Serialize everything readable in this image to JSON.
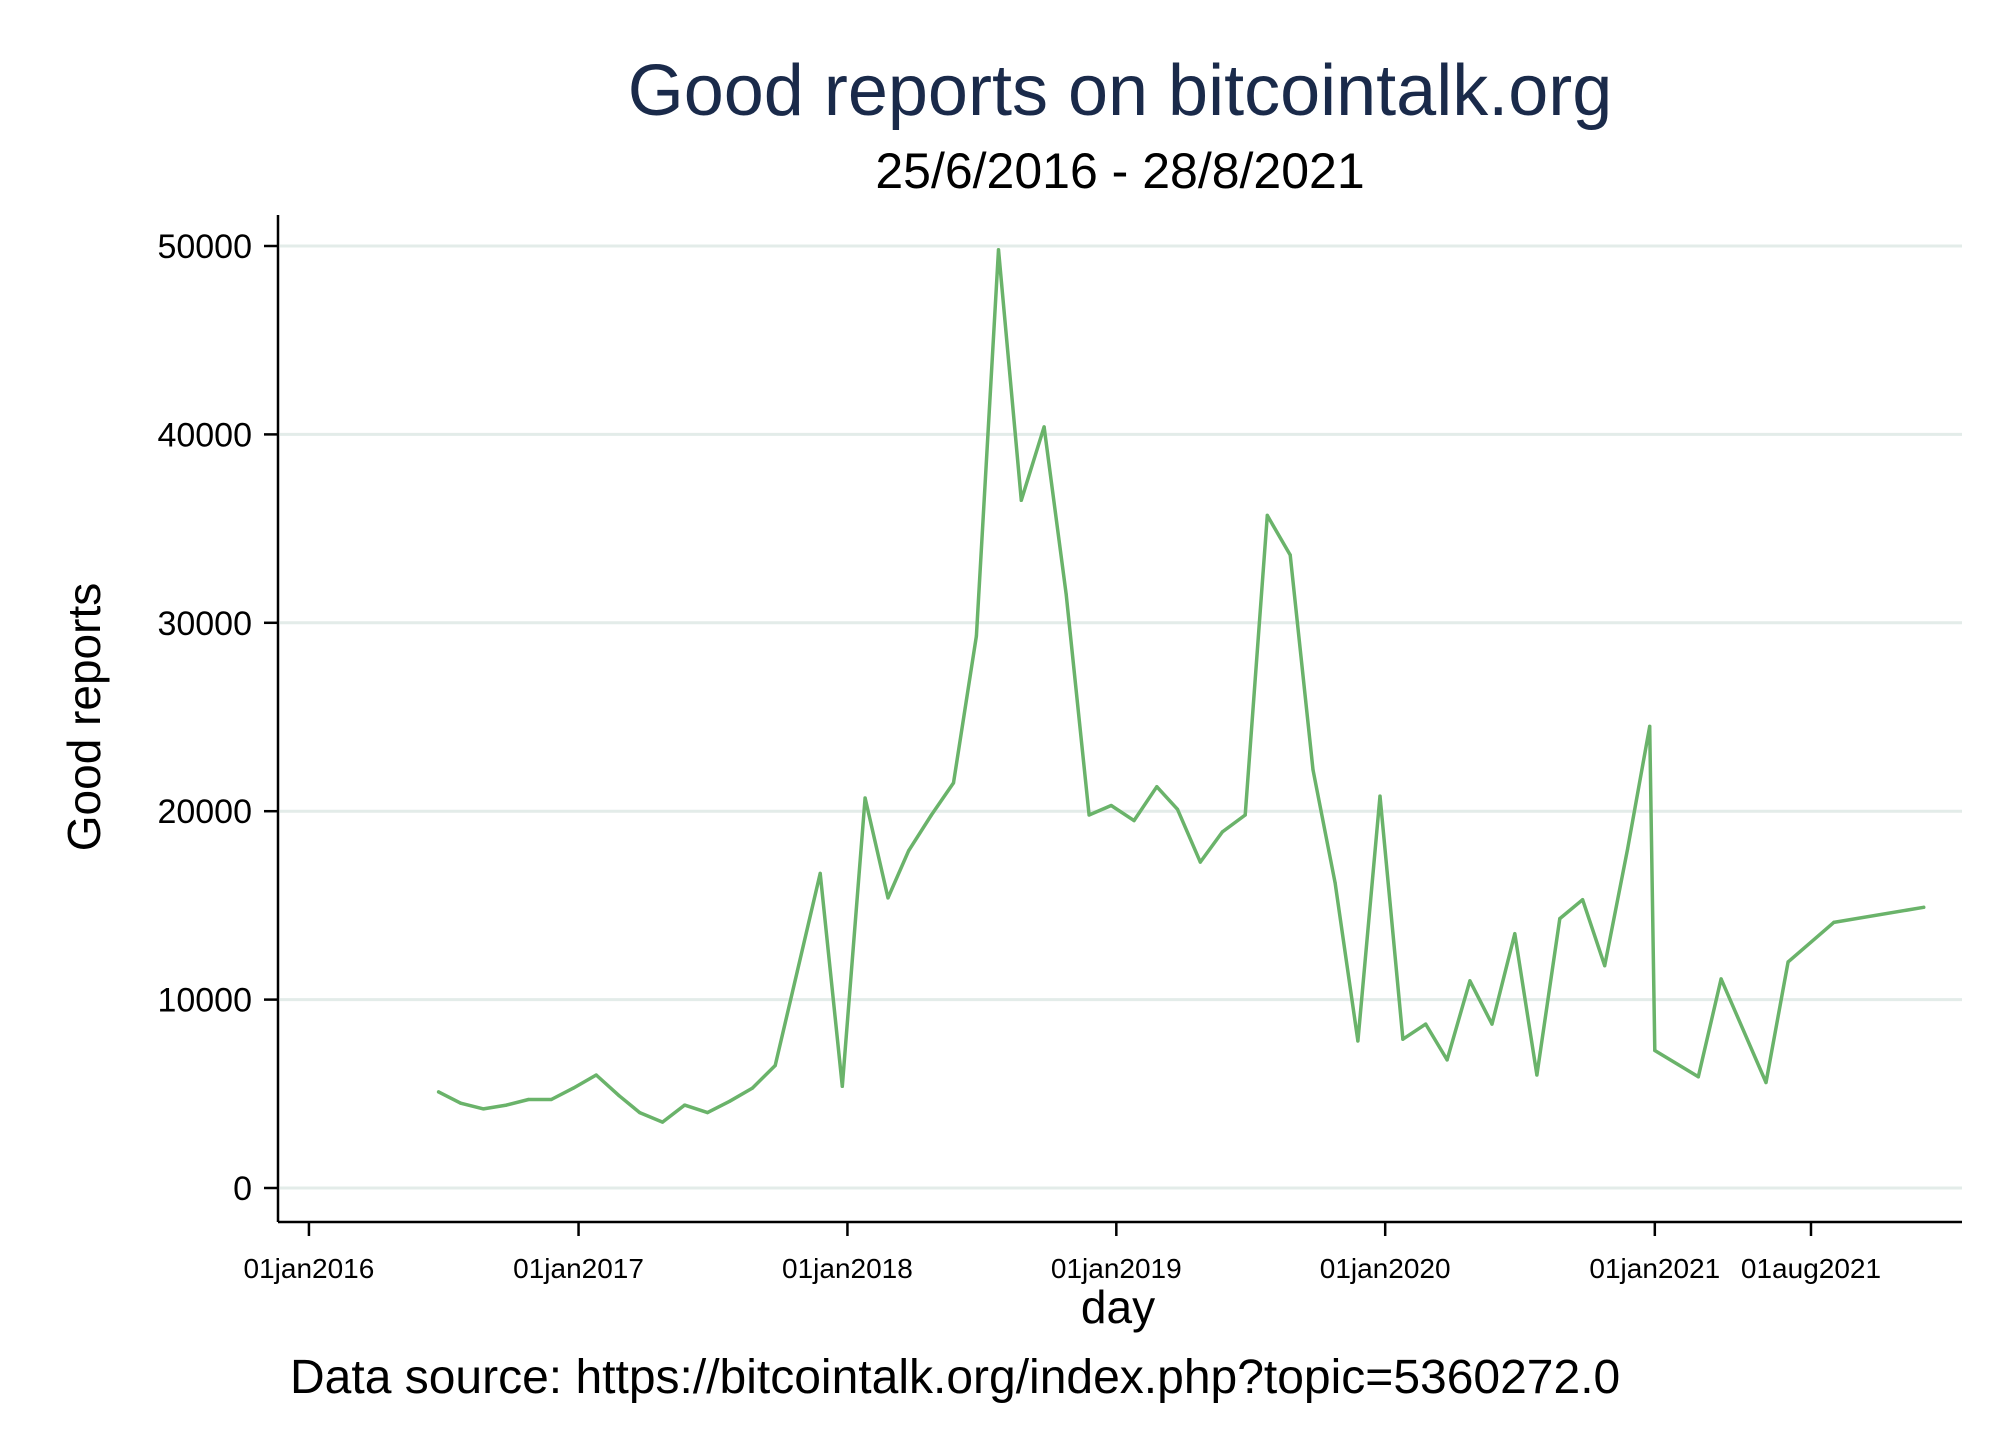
{
  "chart_data": {
    "type": "line",
    "title": "Good reports on bitcointalk.org",
    "subtitle": "25/6/2016 - 28/8/2021",
    "xlabel": "day",
    "ylabel": "Good reports",
    "note": "Data source: https://bitcointalk.org/index.php?topic=5360272.0",
    "x_ticks": [
      "01jan2016",
      "01jan2017",
      "01jan2018",
      "01jan2019",
      "01jan2020",
      "01jan2021",
      "01aug2021"
    ],
    "y_ticks": [
      "0",
      "10000",
      "20000",
      "30000",
      "40000",
      "50000"
    ],
    "ylim": [
      0,
      50000
    ],
    "xlim": [
      "2015-11-20",
      "2022-02-22"
    ],
    "grid": true,
    "line_color": "#6ab36a",
    "series": [
      {
        "name": "",
        "points": [
          [
            "2016-06-25",
            5100
          ],
          [
            "2016-07-25",
            4500
          ],
          [
            "2016-08-25",
            4200
          ],
          [
            "2016-09-25",
            4400
          ],
          [
            "2016-10-25",
            4700
          ],
          [
            "2016-11-25",
            4700
          ],
          [
            "2016-12-25",
            5300
          ],
          [
            "2017-01-25",
            6000
          ],
          [
            "2017-02-25",
            4900
          ],
          [
            "2017-03-25",
            4000
          ],
          [
            "2017-04-25",
            3500
          ],
          [
            "2017-05-25",
            4400
          ],
          [
            "2017-06-25",
            4000
          ],
          [
            "2017-07-25",
            4600
          ],
          [
            "2017-08-25",
            5300
          ],
          [
            "2017-09-25",
            6500
          ],
          [
            "2017-10-25",
            11500
          ],
          [
            "2017-11-25",
            16700
          ],
          [
            "2017-12-25",
            5400
          ],
          [
            "2018-01-25",
            20700
          ],
          [
            "2018-02-25",
            15400
          ],
          [
            "2018-03-25",
            17900
          ],
          [
            "2018-04-25",
            19800
          ],
          [
            "2018-05-25",
            21500
          ],
          [
            "2018-06-25",
            29300
          ],
          [
            "2018-07-25",
            49800
          ],
          [
            "2018-08-25",
            36500
          ],
          [
            "2018-09-25",
            40400
          ],
          [
            "2018-10-25",
            31500
          ],
          [
            "2018-11-25",
            19800
          ],
          [
            "2018-12-25",
            20300
          ],
          [
            "2019-01-25",
            19500
          ],
          [
            "2019-02-25",
            21300
          ],
          [
            "2019-03-25",
            20100
          ],
          [
            "2019-04-25",
            17300
          ],
          [
            "2019-05-25",
            18900
          ],
          [
            "2019-06-25",
            19800
          ],
          [
            "2019-07-25",
            35700
          ],
          [
            "2019-08-25",
            33600
          ],
          [
            "2019-09-25",
            22200
          ],
          [
            "2019-10-25",
            16200
          ],
          [
            "2019-11-25",
            7800
          ],
          [
            "2019-12-25",
            20800
          ],
          [
            "2020-01-25",
            7900
          ],
          [
            "2020-02-25",
            8700
          ],
          [
            "2020-03-25",
            6800
          ],
          [
            "2020-04-25",
            11000
          ],
          [
            "2020-05-25",
            8700
          ],
          [
            "2020-06-25",
            13500
          ],
          [
            "2020-07-25",
            6000
          ],
          [
            "2020-08-25",
            14300
          ],
          [
            "2020-09-25",
            15300
          ],
          [
            "2020-10-25",
            11800
          ],
          [
            "2020-11-25",
            18000
          ],
          [
            "2020-12-25",
            24500
          ],
          [
            "2021-01-01",
            7300
          ],
          [
            "2021-03-01",
            5900
          ],
          [
            "2021-04-01",
            11100
          ],
          [
            "2021-06-01",
            5600
          ],
          [
            "2021-07-01",
            12000
          ],
          [
            "2021-09-01",
            14100
          ],
          [
            "2022-01-01",
            14900
          ]
        ]
      }
    ]
  }
}
